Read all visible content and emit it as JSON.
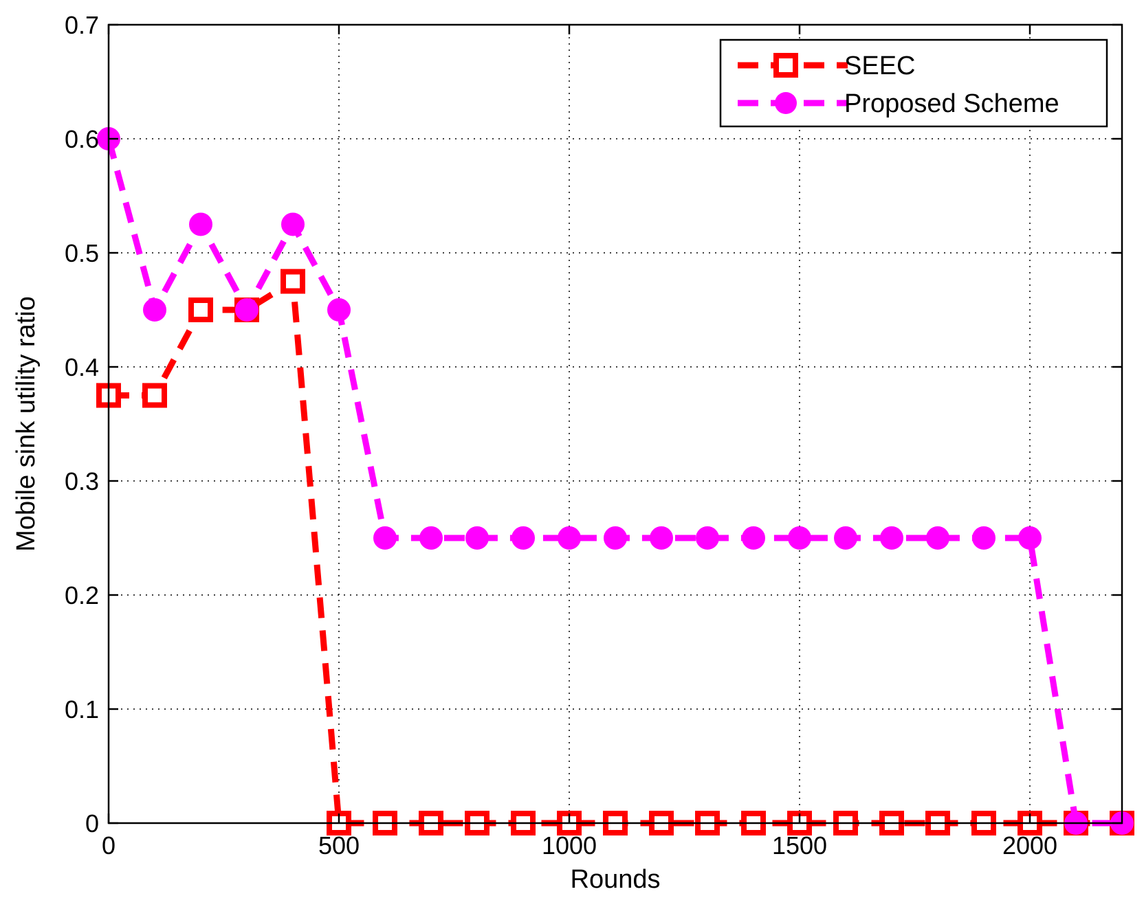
{
  "chart_data": {
    "type": "line",
    "title": "",
    "xlabel": "Rounds",
    "ylabel": "Mobile sink utility ratio",
    "xlim": [
      0,
      2200
    ],
    "ylim": [
      0,
      0.7
    ],
    "xticks": [
      0,
      500,
      1000,
      1500,
      2000
    ],
    "yticks": [
      0,
      0.1,
      0.2,
      0.3,
      0.4,
      0.5,
      0.6,
      0.7
    ],
    "xtick_labels": [
      "0",
      "500",
      "1000",
      "1500",
      "2000"
    ],
    "ytick_labels": [
      "0",
      "0.1",
      "0.2",
      "0.3",
      "0.4",
      "0.5",
      "0.6",
      "0.7"
    ],
    "grid": true,
    "legend_position": "top-right",
    "series": [
      {
        "name": "SEEC",
        "color": "#ff0000",
        "marker": "square",
        "line_style": "dashed",
        "x": [
          0,
          100,
          200,
          300,
          400,
          500,
          600,
          700,
          800,
          900,
          1000,
          1100,
          1200,
          1300,
          1400,
          1500,
          1600,
          1700,
          1800,
          1900,
          2000,
          2100,
          2200
        ],
        "y": [
          0.375,
          0.375,
          0.45,
          0.45,
          0.475,
          0,
          0,
          0,
          0,
          0,
          0,
          0,
          0,
          0,
          0,
          0,
          0,
          0,
          0,
          0,
          0,
          0,
          0
        ]
      },
      {
        "name": "Proposed Scheme",
        "color": "#ff00ff",
        "marker": "circle",
        "line_style": "dashed",
        "x": [
          0,
          100,
          200,
          300,
          400,
          500,
          600,
          700,
          800,
          900,
          1000,
          1100,
          1200,
          1300,
          1400,
          1500,
          1600,
          1700,
          1800,
          1900,
          2000,
          2100,
          2200
        ],
        "y": [
          0.6,
          0.45,
          0.525,
          0.45,
          0.525,
          0.45,
          0.25,
          0.25,
          0.25,
          0.25,
          0.25,
          0.25,
          0.25,
          0.25,
          0.25,
          0.25,
          0.25,
          0.25,
          0.25,
          0.25,
          0.25,
          0,
          0
        ]
      }
    ]
  }
}
